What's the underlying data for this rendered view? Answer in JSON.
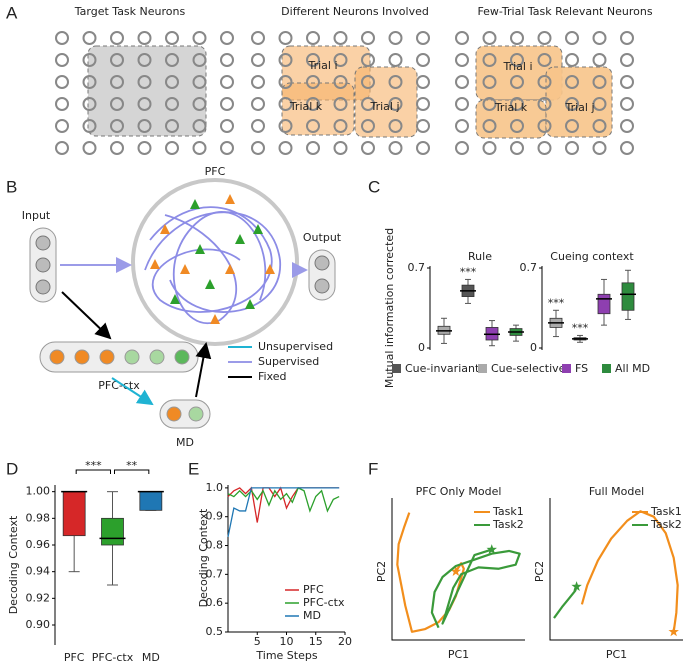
{
  "panel_labels": [
    "A",
    "B",
    "C",
    "D",
    "E",
    "F"
  ],
  "panel_a": {
    "titles": [
      "Target Task Neurons",
      "Different Neurons Involved",
      "Few-Trial Task Relevant Neurons"
    ],
    "middle_trials": [
      "Trial i",
      "Trial k",
      "Trial j"
    ],
    "right_trials": [
      "Trial i",
      "Trial k",
      "Trial j"
    ]
  },
  "panel_b": {
    "pfc": "PFC",
    "input": "Input",
    "output": "Output",
    "pfc_ctx": "PFC-ctx",
    "md": "MD",
    "legend": [
      {
        "name": "Unsupervised",
        "color": "#1fb3d3"
      },
      {
        "name": "Supervised",
        "color": "#9b9be8"
      },
      {
        "name": "Fixed",
        "color": "#000000"
      }
    ]
  },
  "chart_data": [
    {
      "type": "box-group",
      "ylabel": "Mutual information corrected",
      "ylim": [
        0,
        0.7
      ],
      "yticks": [
        0,
        0.7
      ],
      "subplots": [
        {
          "title": "Rule",
          "boxes": [
            {
              "color": "#aaaaaa",
              "whislo": 0.04,
              "q1": 0.12,
              "med": 0.15,
              "q3": 0.19,
              "whishi": 0.26
            },
            {
              "color": "#555555",
              "whislo": 0.39,
              "q1": 0.45,
              "med": 0.5,
              "q3": 0.55,
              "whishi": 0.6,
              "sig": "***"
            },
            {
              "color": "#8e3fb0",
              "whislo": 0.02,
              "q1": 0.07,
              "med": 0.12,
              "q3": 0.18,
              "whishi": 0.24
            },
            {
              "color": "#2e8b3e",
              "whislo": 0.06,
              "q1": 0.11,
              "med": 0.14,
              "q3": 0.17,
              "whishi": 0.2
            }
          ]
        },
        {
          "title": "Cueing context",
          "boxes": [
            {
              "color": "#aaaaaa",
              "whislo": 0.1,
              "q1": 0.18,
              "med": 0.22,
              "q3": 0.26,
              "whishi": 0.33,
              "sig": "***"
            },
            {
              "color": "#555555",
              "whislo": 0.05,
              "q1": 0.07,
              "med": 0.08,
              "q3": 0.09,
              "whishi": 0.11,
              "sig": "***"
            },
            {
              "color": "#8e3fb0",
              "whislo": 0.2,
              "q1": 0.3,
              "med": 0.43,
              "q3": 0.47,
              "whishi": 0.6
            },
            {
              "color": "#2e8b3e",
              "whislo": 0.25,
              "q1": 0.33,
              "med": 0.47,
              "q3": 0.57,
              "whishi": 0.68
            }
          ]
        }
      ],
      "legend": [
        {
          "name": "Cue-invariant",
          "color": "#555555"
        },
        {
          "name": "Cue-selective",
          "color": "#aaaaaa"
        },
        {
          "name": "FS",
          "color": "#8e3fb0"
        },
        {
          "name": "All MD",
          "color": "#2e8b3e"
        }
      ]
    },
    {
      "type": "box",
      "ylabel": "Decoding Context",
      "categories": [
        "PFC",
        "PFC-ctx",
        "MD"
      ],
      "boxes": [
        {
          "color": "#d62728",
          "whislo": 0.94,
          "q1": 0.967,
          "med": 1.0,
          "q3": 1.0,
          "whishi": 1.0
        },
        {
          "color": "#2ca02c",
          "whislo": 0.93,
          "q1": 0.96,
          "med": 0.965,
          "q3": 0.98,
          "whishi": 1.0
        },
        {
          "color": "#1f77b4",
          "whislo": 0.986,
          "q1": 0.986,
          "med": 1.0,
          "q3": 1.0,
          "whishi": 1.0
        }
      ],
      "significance": [
        "***",
        "**"
      ],
      "ylim": [
        0.885,
        1.005
      ],
      "yticks": [
        {
          "value": 0.9,
          "label": "0.90"
        },
        0.92,
        0.94,
        0.96,
        0.98,
        {
          "value": 1,
          "label": "1.00"
        }
      ]
    },
    {
      "type": "line",
      "xlabel": "Time Steps",
      "ylabel": "Decoding Context",
      "x": [
        0,
        1,
        2,
        3,
        4,
        5,
        6,
        7,
        8,
        9,
        10,
        11,
        12,
        13,
        14,
        15,
        16,
        17,
        18,
        19
      ],
      "series": [
        {
          "name": "PFC",
          "color": "#d62728",
          "values": [
            0.97,
            0.99,
            1,
            0.98,
            1,
            0.88,
            1,
            1,
            0.97,
            1,
            0.93,
            0.97,
            1,
            1,
            1,
            1,
            1,
            1,
            1,
            1
          ]
        },
        {
          "name": "PFC-ctx",
          "color": "#2ca02c",
          "values": [
            0.98,
            0.97,
            0.99,
            0.97,
            0.99,
            0.96,
            0.99,
            0.94,
            0.99,
            0.96,
            0.98,
            0.95,
            1,
            0.99,
            0.92,
            0.97,
            0.99,
            0.92,
            0.96,
            0.97
          ]
        },
        {
          "name": "MD",
          "color": "#1f77b4",
          "values": [
            0.83,
            0.93,
            0.92,
            0.92,
            1,
            1,
            1,
            1,
            1,
            1,
            1,
            1,
            1,
            1,
            1,
            1,
            1,
            1,
            1,
            1
          ]
        }
      ],
      "xlim": [
        0,
        20
      ],
      "xticks": [
        5,
        10,
        15,
        20
      ],
      "ylim": [
        0.5,
        1.01
      ],
      "yticks": [
        0.5,
        0.6,
        0.7,
        0.8,
        0.9,
        {
          "value": 1,
          "label": "1.0"
        }
      ],
      "legend": "lower right"
    },
    {
      "type": "trajectory",
      "title": "PFC Only Model",
      "xlabel": "PC1",
      "ylabel": "PC2",
      "xlim": [
        0,
        10
      ],
      "ylim": [
        0,
        10
      ],
      "series": [
        {
          "name": "Task1",
          "color": "#f28e1c",
          "x": [
            1.3,
            0.9,
            0.5,
            0.4,
            0.7,
            1.0,
            1.5,
            2.5,
            3.5,
            4.3,
            4.8,
            5.1,
            5.4,
            5.2,
            4.8
          ],
          "y": [
            9.3,
            8.2,
            7.0,
            5.5,
            4.0,
            2.5,
            0.6,
            0.8,
            1.3,
            2.2,
            3.2,
            4.2,
            5.2,
            5.6,
            5.0
          ]
        },
        {
          "name": "Task2",
          "color": "#3a9a3a",
          "x": [
            3.5,
            3.0,
            3.2,
            3.8,
            4.8,
            6.0,
            7.5,
            8.8,
            9.6,
            9.3,
            8.0,
            6.5,
            5.2,
            4.6,
            4.3,
            4.0,
            3.8,
            6.2,
            7.5
          ],
          "y": [
            0.9,
            2.0,
            3.5,
            4.6,
            5.4,
            5.8,
            6.3,
            6.5,
            6.3,
            5.5,
            5.2,
            5.3,
            4.8,
            3.8,
            2.8,
            1.8,
            1.2,
            6.2,
            6.6
          ]
        }
      ]
    },
    {
      "type": "trajectory",
      "title": "Full Model",
      "xlabel": "PC1",
      "ylabel": "PC2",
      "xlim": [
        0,
        10
      ],
      "ylim": [
        0,
        10
      ],
      "series": [
        {
          "name": "Task1",
          "color": "#f28e1c",
          "x": [
            2.4,
            2.8,
            3.6,
            4.6,
            5.8,
            6.8,
            7.8,
            8.7,
            9.3,
            9.6,
            9.5,
            9.3
          ],
          "y": [
            2.6,
            4.0,
            5.8,
            7.4,
            8.7,
            9.4,
            9.0,
            7.8,
            6.0,
            4.0,
            2.0,
            0.6
          ]
        },
        {
          "name": "Task2",
          "color": "#3a9a3a",
          "x": [
            0.3,
            0.9,
            1.4,
            1.9,
            2.0
          ],
          "y": [
            1.6,
            2.4,
            3.0,
            3.6,
            3.9
          ]
        }
      ]
    }
  ]
}
